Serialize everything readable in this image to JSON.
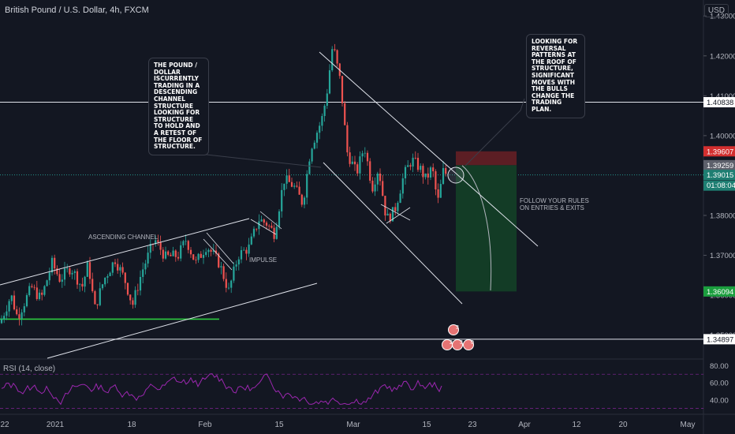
{
  "header": {
    "symbol_title": "British Pound / U.S. Dollar, 4h, FXCM",
    "currency_button": "USD"
  },
  "colors": {
    "background": "#131722",
    "candle_up": "#26a69a",
    "candle_down": "#ef5350",
    "rsi_line": "#9c27b0",
    "stop_zone": "#5c1e24",
    "target_zone": "#133c26",
    "support_line": "#2ecc40"
  },
  "annotations": {
    "left_note": "THE POUND / DOLLAR ISCURRENTLY TRADING IN A DESCENDING CHANNEL STRUCTURE LOOKING FOR STRUCTURE TO HOLD AND A RETEST OF THE FLOOR OF STRUCTURE.",
    "right_note": "LOOKING FOR REVERSAL PATTERNS AT THE ROOF OF STRUCTURE, SIGNIFICANT MOVES WITH THE BULLS CHANGE THE TRADING PLAN.",
    "ascending_channel": "ASCENDING CHANNEL",
    "impulse": "IMPULSE",
    "follow_rules_1": "FOLLOW YOUR RULES",
    "follow_rules_2": "ON ENTRIES & EXITS"
  },
  "rsi": {
    "title": "RSI (14, close)",
    "ticks": [
      "80.00",
      "60.00",
      "40.00"
    ]
  },
  "chart_data": {
    "type": "candlestick",
    "y_axis_ticks": [
      "1.43000",
      "1.42000",
      "1.41000",
      "1.40000",
      "1.39000",
      "1.38000",
      "1.37000",
      "1.36000",
      "1.35000"
    ],
    "ylim": [
      1.344,
      1.434
    ],
    "x_axis_ticks": [
      "22",
      "2021",
      "18",
      "Feb",
      "15",
      "Mar",
      "15",
      "23",
      "Apr",
      "12",
      "20",
      "May"
    ],
    "price_labels": [
      {
        "value": "1.40838",
        "style": "white",
        "y": 1.40838
      },
      {
        "value": "1.39607",
        "style": "red",
        "y": 1.39607
      },
      {
        "value": "1.39259",
        "style": "gray",
        "y": 1.39259
      },
      {
        "value": "1.39015",
        "style": "teal",
        "y": 1.39015
      },
      {
        "value": "01:08:04",
        "style": "teal_sub"
      },
      {
        "value": "1.36094",
        "style": "green",
        "y": 1.36094
      },
      {
        "value": "1.34897",
        "style": "white",
        "y": 1.34897
      }
    ],
    "horizontal_levels": [
      1.40838,
      1.34897
    ],
    "support_level": 1.354,
    "close_price": 1.39015,
    "trade": {
      "entry": 1.39259,
      "stop": 1.39607,
      "target": 1.36094
    },
    "event_markers": [
      "3",
      "2",
      "3",
      "0"
    ]
  }
}
